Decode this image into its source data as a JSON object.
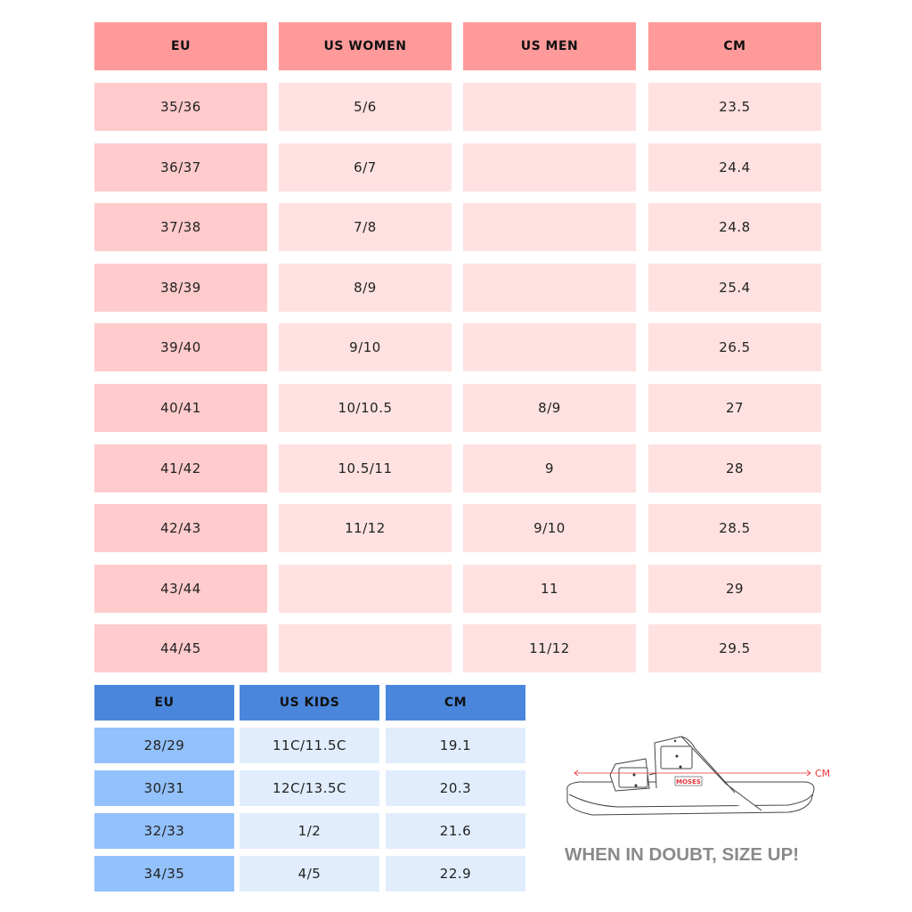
{
  "adult_table": {
    "headers": [
      "EU",
      "US WOMEN",
      "US MEN",
      "CM"
    ],
    "rows": [
      [
        "35/36",
        "5/6",
        "",
        "23.5"
      ],
      [
        "36/37",
        "6/7",
        "",
        "24.4"
      ],
      [
        "37/38",
        "7/8",
        "",
        "24.8"
      ],
      [
        "38/39",
        "8/9",
        "",
        "25.4"
      ],
      [
        "39/40",
        "9/10",
        "",
        "26.5"
      ],
      [
        "40/41",
        "10/10.5",
        "8/9",
        "27"
      ],
      [
        "41/42",
        "10.5/11",
        "9",
        "28"
      ],
      [
        "42/43",
        "11/12",
        "9/10",
        "28.5"
      ],
      [
        "43/44",
        "",
        "11",
        "29"
      ],
      [
        "44/45",
        "",
        "11/12",
        "29.5"
      ]
    ],
    "colors": {
      "header": "#ff9a9a",
      "first_col": "#ffcbcc",
      "body": "#ffe1e1"
    }
  },
  "kids_table": {
    "headers": [
      "EU",
      "US KIDS",
      "CM"
    ],
    "rows": [
      [
        "28/29",
        "11C/11.5C",
        "19.1"
      ],
      [
        "30/31",
        "12C/13.5C",
        "20.3"
      ],
      [
        "32/33",
        "1/2",
        "21.6"
      ],
      [
        "34/35",
        "4/5",
        "22.9"
      ]
    ],
    "colors": {
      "header": "#4a87dc",
      "first_col": "#93c1fb",
      "body": "#e1edfc"
    }
  },
  "illustration": {
    "icon": "sandal-measure-icon",
    "measure_label": "CM",
    "brand_logo": "MOSES",
    "measure_color": "#e8333a"
  },
  "tagline": "WHEN IN DOUBT, SIZE UP!"
}
